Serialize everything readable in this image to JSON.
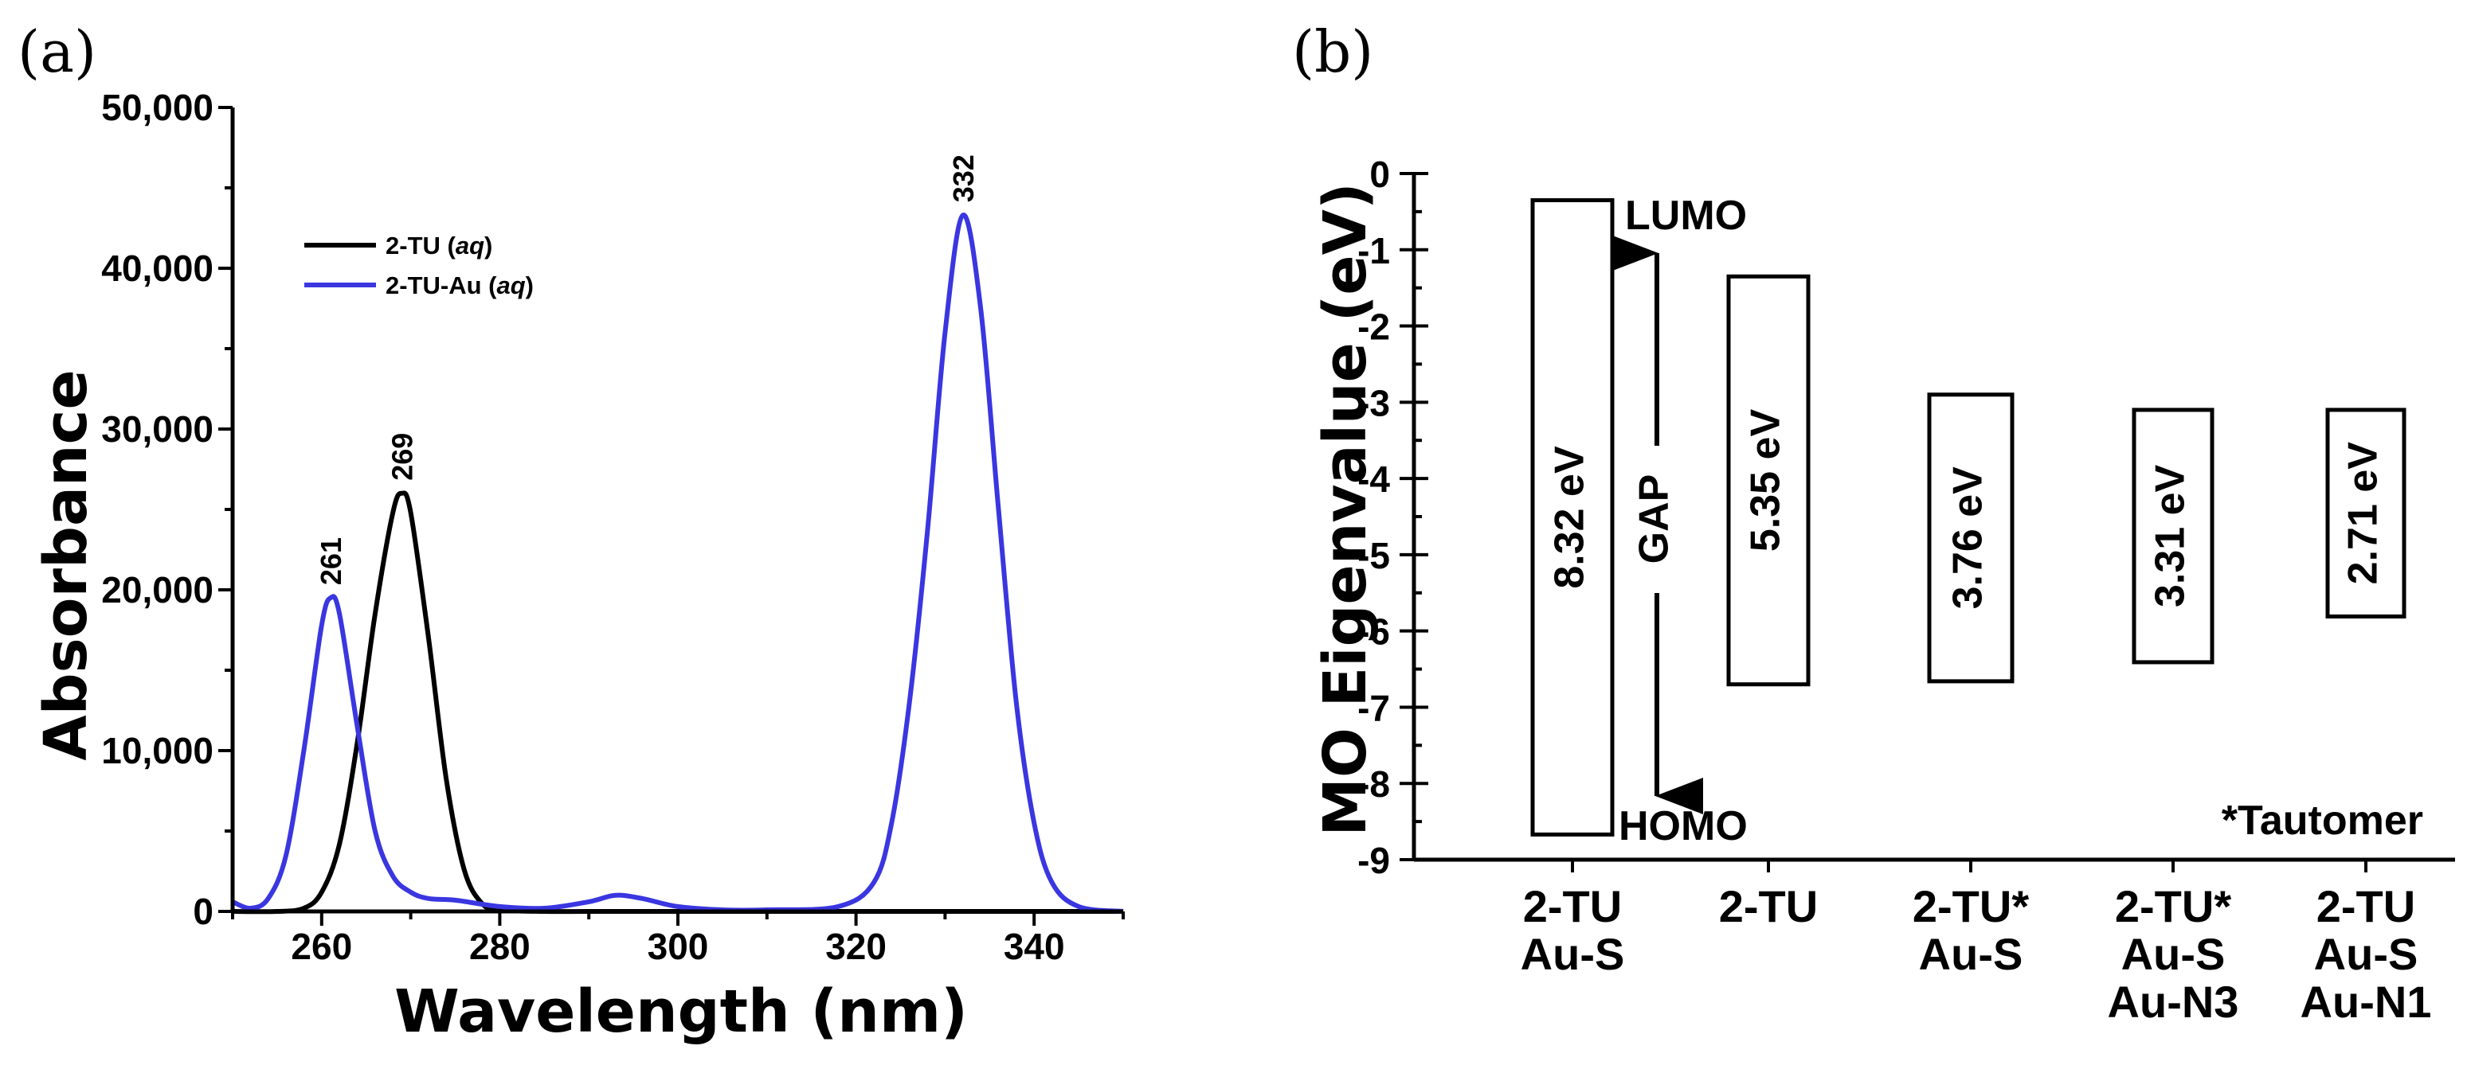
{
  "chart_data": [
    {
      "panel": "(a)",
      "type": "line",
      "xlabel": "Wavelength (nm)",
      "ylabel": "Absorbance",
      "xlim": [
        250,
        350
      ],
      "ylim": [
        0,
        50000
      ],
      "xticks": [
        260,
        280,
        300,
        320,
        340
      ],
      "xtick_labels": [
        "260",
        "280",
        "300",
        "320",
        "340"
      ],
      "yticks": [
        0,
        10000,
        20000,
        30000,
        40000,
        50000
      ],
      "ytick_labels": [
        "0",
        "10,000",
        "20,000",
        "30,000",
        "40,000",
        "50,000"
      ],
      "legend": {
        "placement": "top-left",
        "entries": [
          {
            "prefix": "2-TU (",
            "italic": "aq",
            "suffix": ")",
            "color": "#000000"
          },
          {
            "prefix": "2-TU-Au (",
            "italic": "aq",
            "suffix": ")",
            "color": "#3a36e0"
          }
        ]
      },
      "series": [
        {
          "name": "2-TU (aq)",
          "color": "#000000",
          "x": [
            250,
            255,
            258,
            260,
            262,
            264,
            266,
            268,
            269,
            270,
            272,
            274,
            276,
            278,
            280,
            285,
            290,
            300,
            320,
            350
          ],
          "y": [
            0,
            0,
            200,
            1200,
            4200,
            10500,
            18500,
            24800,
            26000,
            24800,
            17000,
            8200,
            2600,
            500,
            100,
            0,
            0,
            0,
            0,
            0
          ]
        },
        {
          "name": "2-TU-Au (aq)",
          "color": "#3a36e0",
          "x": [
            250,
            252,
            254,
            256,
            258,
            260,
            261,
            262,
            264,
            266,
            268,
            270,
            272,
            275,
            280,
            285,
            290,
            293,
            296,
            300,
            305,
            310,
            318,
            322,
            324,
            326,
            328,
            330,
            332,
            334,
            336,
            338,
            340,
            342,
            345,
            350
          ],
          "y": [
            600,
            200,
            800,
            3500,
            10000,
            17800,
            19500,
            18500,
            11500,
            5000,
            2200,
            1200,
            800,
            700,
            300,
            200,
            600,
            1000,
            800,
            300,
            100,
            100,
            300,
            1800,
            5500,
            13000,
            23500,
            36000,
            43300,
            37500,
            25000,
            13000,
            5500,
            1800,
            300,
            0
          ]
        }
      ],
      "annotations": [
        {
          "text": "261",
          "x": 261,
          "y": 19500
        },
        {
          "text": "269",
          "x": 269,
          "y": 26000
        },
        {
          "text": "332",
          "x": 332,
          "y": 43300
        }
      ]
    },
    {
      "panel": "(b)",
      "type": "bar",
      "ylabel": "MO Eigenvalue (eV)",
      "ylim": [
        -9,
        0
      ],
      "yticks": [
        0,
        -1,
        -2,
        -3,
        -4,
        -5,
        -6,
        -7,
        -8,
        -9
      ],
      "ytick_labels": [
        "0",
        "-1",
        "-2",
        "-3",
        "-4",
        "-5",
        "-6",
        "-7",
        "-8",
        "-9"
      ],
      "categories": [
        [
          "2-TU",
          "Au-S"
        ],
        [
          "2-TU"
        ],
        [
          "2-TU*",
          "Au-S"
        ],
        [
          "2-TU*",
          "Au-S",
          "Au-N3"
        ],
        [
          "2-TU",
          "Au-S",
          "Au-N1"
        ]
      ],
      "series": [
        {
          "name": "LUMO",
          "values": [
            -0.35,
            -1.35,
            -2.9,
            -3.1,
            -3.1
          ]
        },
        {
          "name": "HOMO",
          "values": [
            -8.67,
            -6.7,
            -6.66,
            -6.41,
            -5.81
          ]
        }
      ],
      "gap_labels": [
        "8.32 eV",
        "5.35 eV",
        "3.76 eV",
        "3.31 eV",
        "2.71 eV"
      ],
      "annotations": {
        "lumo": "LUMO",
        "homo": "HOMO",
        "gap": "GAP",
        "note": "*Tautomer"
      }
    }
  ]
}
